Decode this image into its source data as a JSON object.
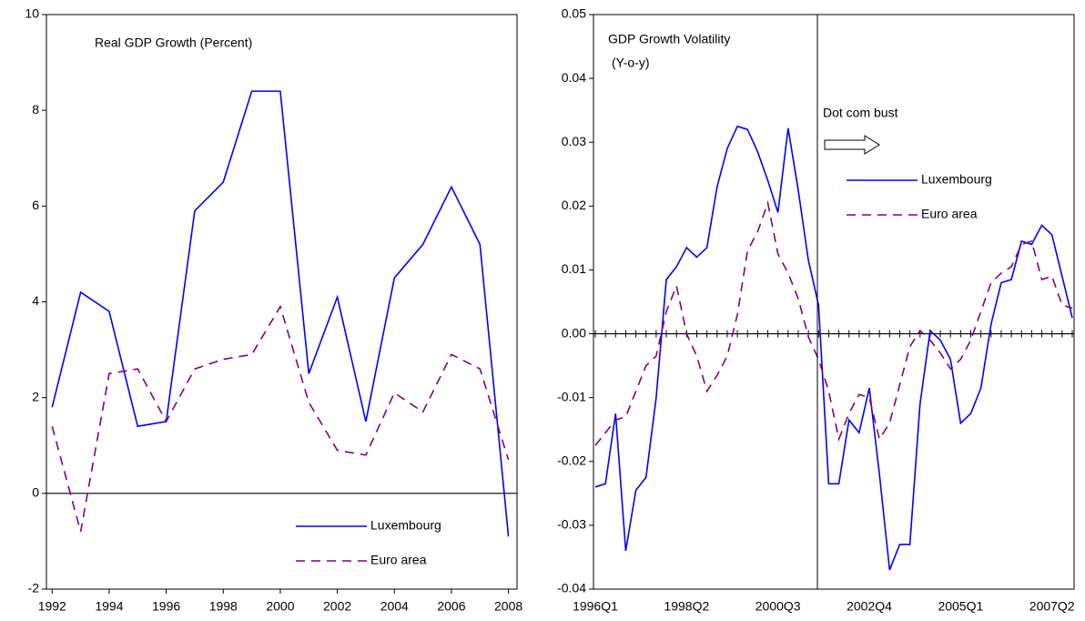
{
  "chart_data": [
    {
      "type": "line",
      "title": "Real GDP Growth (Percent)",
      "x": [
        1992,
        1993,
        1994,
        1995,
        1996,
        1997,
        1998,
        1999,
        2000,
        2001,
        2002,
        2003,
        2004,
        2005,
        2006,
        2007,
        2008
      ],
      "xlim": [
        1991.8,
        2008.3
      ],
      "xticks": [
        1992,
        1994,
        1996,
        1998,
        2000,
        2002,
        2004,
        2006,
        2008
      ],
      "ylim": [
        -2,
        10
      ],
      "yticks": [
        -2,
        0,
        2,
        4,
        6,
        8,
        10
      ],
      "legend": "lower right",
      "series": [
        {
          "name": "Luxembourg",
          "color": "#0000ff",
          "linestyle": "solid",
          "values": [
            1.8,
            4.2,
            3.8,
            1.4,
            1.5,
            5.9,
            6.5,
            8.4,
            8.4,
            2.5,
            4.1,
            1.5,
            4.5,
            5.2,
            6.4,
            5.2,
            -0.9
          ]
        },
        {
          "name": "Euro area",
          "color": "#800080",
          "linestyle": "dashed",
          "values": [
            1.4,
            -0.8,
            2.5,
            2.6,
            1.5,
            2.6,
            2.8,
            2.9,
            3.9,
            1.9,
            0.9,
            0.8,
            2.1,
            1.7,
            2.9,
            2.6,
            0.7
          ]
        }
      ]
    },
    {
      "type": "line",
      "title": "GDP Growth Volatility",
      "subtitle": "(Y-o-y)",
      "annotations": [
        "Dot com bust"
      ],
      "categories": [
        "1996Q1",
        null,
        null,
        null,
        null,
        null,
        null,
        null,
        null,
        "1998Q2",
        null,
        null,
        null,
        null,
        null,
        null,
        null,
        null,
        "2000Q3",
        null,
        null,
        null,
        null,
        null,
        null,
        null,
        null,
        "2002Q4",
        null,
        null,
        null,
        null,
        null,
        null,
        null,
        null,
        "2005Q1",
        null,
        null,
        null,
        null,
        null,
        null,
        null,
        null,
        "2007Q2",
        null,
        null
      ],
      "ylim": [
        -0.04,
        0.05
      ],
      "yticks": [
        -0.04,
        -0.03,
        -0.02,
        -0.01,
        {
          "value": 0,
          "label": "0.00"
        },
        0.01,
        0.02,
        0.03,
        0.04,
        0.05
      ],
      "legend": "center right",
      "series": [
        {
          "name": "Luxembourg",
          "color": "#0000ff",
          "linestyle": "solid",
          "values": [
            -0.024,
            -0.0235,
            -0.0125,
            -0.034,
            -0.0245,
            -0.0225,
            -0.01,
            0.0085,
            0.0105,
            0.0135,
            0.012,
            0.0135,
            0.023,
            0.029,
            0.0325,
            0.032,
            0.0285,
            0.024,
            0.019,
            0.0322,
            0.0225,
            0.0115,
            0.0045,
            -0.0235,
            -0.0235,
            -0.0135,
            -0.0155,
            -0.0085,
            -0.022,
            -0.037,
            -0.033,
            -0.033,
            -0.011,
            0.0005,
            -0.001,
            -0.004,
            -0.014,
            -0.0125,
            -0.0085,
            0.0015,
            0.008,
            0.0085,
            0.0145,
            0.014,
            0.017,
            0.0155,
            0.009,
            0.0025
          ]
        },
        {
          "name": "Euro area",
          "color": "#800080",
          "linestyle": "dashed",
          "values": [
            -0.0175,
            -0.0155,
            -0.0135,
            -0.013,
            -0.009,
            -0.005,
            -0.0035,
            0.0035,
            0.0075,
            0.0,
            -0.0035,
            -0.009,
            -0.0065,
            -0.0035,
            0.003,
            0.013,
            0.016,
            0.0205,
            0.0125,
            0.0095,
            0.0055,
            -0.0005,
            -0.004,
            -0.009,
            -0.0165,
            -0.0125,
            -0.0095,
            -0.01,
            -0.0165,
            -0.014,
            -0.008,
            -0.002,
            0.0005,
            -0.001,
            -0.003,
            -0.0055,
            -0.004,
            -0.001,
            0.0035,
            0.008,
            0.0095,
            0.0105,
            0.014,
            0.0145,
            0.0085,
            0.009,
            0.0045,
            0.004
          ]
        }
      ]
    }
  ]
}
